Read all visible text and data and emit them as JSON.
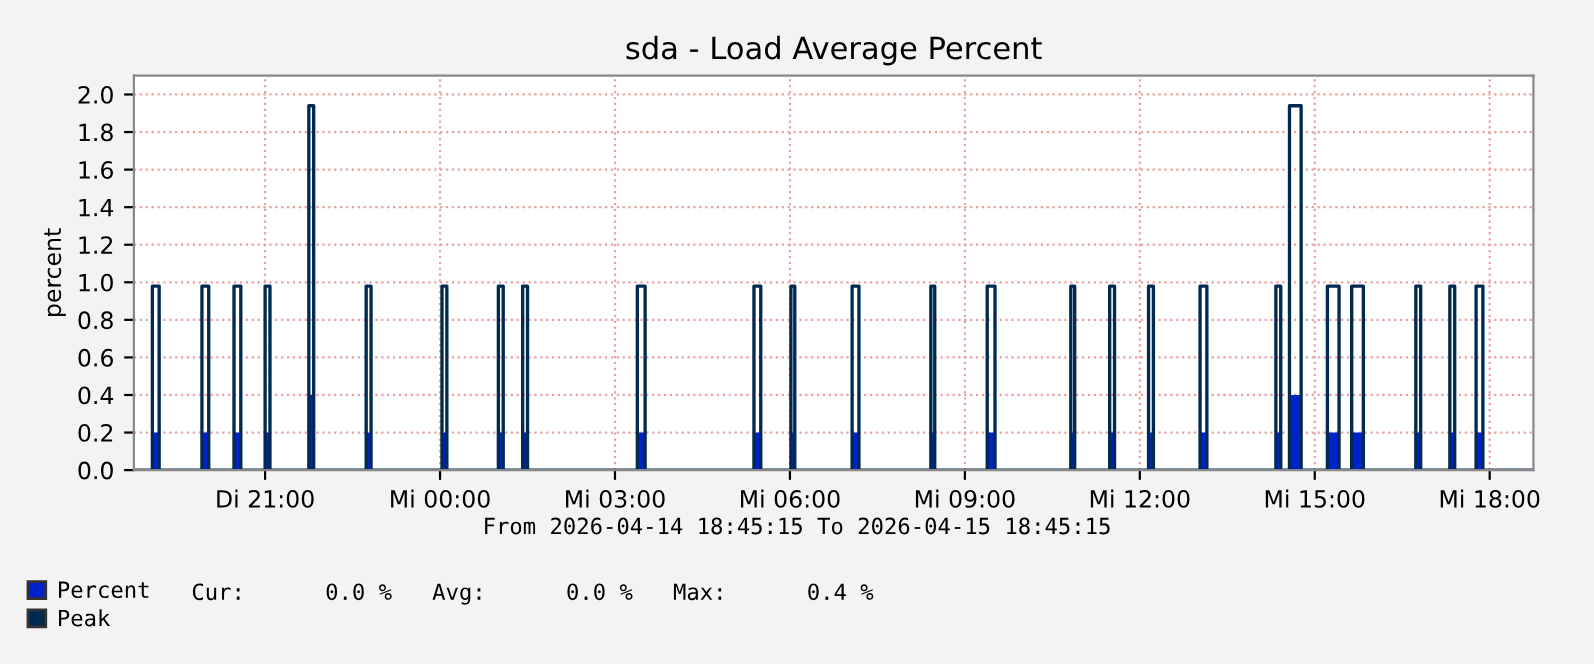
{
  "chart_data": {
    "type": "step",
    "title": "sda - Load Average Percent",
    "ylabel": "percent",
    "x": [
      "2026-04-14T18:45",
      "2026-04-14T19:04",
      "2026-04-14T19:11",
      "2026-04-14T19:55",
      "2026-04-14T20:02",
      "2026-04-14T20:28",
      "2026-04-14T20:35",
      "2026-04-14T21:00",
      "2026-04-14T21:05",
      "2026-04-14T21:45",
      "2026-04-14T21:50",
      "2026-04-14T22:44",
      "2026-04-14T22:49",
      "2026-04-15T00:02",
      "2026-04-15T00:07",
      "2026-04-15T01:00",
      "2026-04-15T01:05",
      "2026-04-15T01:25",
      "2026-04-15T01:30",
      "2026-04-15T03:23",
      "2026-04-15T03:31",
      "2026-04-15T05:23",
      "2026-04-15T05:30",
      "2026-04-15T06:01",
      "2026-04-15T06:05",
      "2026-04-15T07:04",
      "2026-04-15T07:11",
      "2026-04-15T08:25",
      "2026-04-15T08:29",
      "2026-04-15T09:23",
      "2026-04-15T09:31",
      "2026-04-15T10:49",
      "2026-04-15T10:53",
      "2026-04-15T11:29",
      "2026-04-15T11:34",
      "2026-04-15T12:09",
      "2026-04-15T12:14",
      "2026-04-15T13:02",
      "2026-04-15T13:09",
      "2026-04-15T14:20",
      "2026-04-15T14:25",
      "2026-04-15T14:34",
      "2026-04-15T14:46",
      "2026-04-15T15:13",
      "2026-04-15T15:25",
      "2026-04-15T15:38",
      "2026-04-15T15:50",
      "2026-04-15T16:44",
      "2026-04-15T16:49",
      "2026-04-15T17:19",
      "2026-04-15T17:24",
      "2026-04-15T17:46",
      "2026-04-15T17:53",
      "2026-04-15T18:45"
    ],
    "series": [
      {
        "name": "Percent",
        "type": "area",
        "color": "#0022cc",
        "values": [
          0,
          0.2,
          0,
          0.2,
          0,
          0.2,
          0,
          0.2,
          0,
          0.4,
          0,
          0.2,
          0,
          0.2,
          0,
          0.2,
          0,
          0.2,
          0,
          0.2,
          0,
          0.2,
          0,
          0.2,
          0,
          0.2,
          0,
          0.2,
          0,
          0.2,
          0,
          0.2,
          0,
          0.2,
          0,
          0.2,
          0,
          0.2,
          0,
          0.2,
          0,
          0.4,
          0,
          0.2,
          0,
          0.2,
          0,
          0.2,
          0,
          0.2,
          0,
          0.2,
          0,
          0
        ]
      },
      {
        "name": "Peak",
        "color": "#002a50",
        "values": [
          0,
          0.98,
          0,
          0.98,
          0,
          0.98,
          0,
          0.98,
          0,
          1.94,
          0,
          0.98,
          0,
          0.98,
          0,
          0.98,
          0,
          0.98,
          0,
          0.98,
          0,
          0.98,
          0,
          0.98,
          0,
          0.98,
          0,
          0.98,
          0,
          0.98,
          0,
          0.98,
          0,
          0.98,
          0,
          0.98,
          0,
          0.98,
          0,
          0.98,
          0,
          1.94,
          0,
          0.98,
          0,
          0.98,
          0,
          0.98,
          0,
          0.98,
          0,
          0.98,
          0,
          0
        ]
      }
    ],
    "xlim": [
      "2026-04-14T18:45",
      "2026-04-15T18:45"
    ],
    "xticks": [
      {
        "value": "2026-04-14T21:00",
        "label": "Di 21:00"
      },
      {
        "value": "2026-04-15T00:00",
        "label": "Mi 00:00"
      },
      {
        "value": "2026-04-15T03:00",
        "label": "Mi 03:00"
      },
      {
        "value": "2026-04-15T06:00",
        "label": "Mi 06:00"
      },
      {
        "value": "2026-04-15T09:00",
        "label": "Mi 09:00"
      },
      {
        "value": "2026-04-15T12:00",
        "label": "Mi 12:00"
      },
      {
        "value": "2026-04-15T15:00",
        "label": "Mi 15:00"
      },
      {
        "value": "2026-04-15T18:00",
        "label": "Mi 18:00"
      }
    ],
    "ylim": [
      0,
      2.1
    ],
    "yticks": [
      {
        "value": 0,
        "label": "0.0"
      },
      {
        "value": 0.2,
        "label": "0.2"
      },
      {
        "value": 0.4,
        "label": "0.4"
      },
      {
        "value": 0.6,
        "label": "0.6"
      },
      {
        "value": 0.8,
        "label": "0.8"
      },
      {
        "value": 1.0,
        "label": "1.0"
      },
      {
        "value": 1.2,
        "label": "1.2"
      },
      {
        "value": 1.4,
        "label": "1.4"
      },
      {
        "value": 1.6,
        "label": "1.6"
      },
      {
        "value": 1.8,
        "label": "1.8"
      },
      {
        "value": 2.0,
        "label": "2.0"
      }
    ],
    "grid": true,
    "legend": "bottom left",
    "annotations": [
      "From 2026-04-14 18:45:15 To 2026-04-15 18:45:15",
      "Cur:      0.0 %   Avg:      0.0 %   Max:      0.4 %"
    ]
  }
}
